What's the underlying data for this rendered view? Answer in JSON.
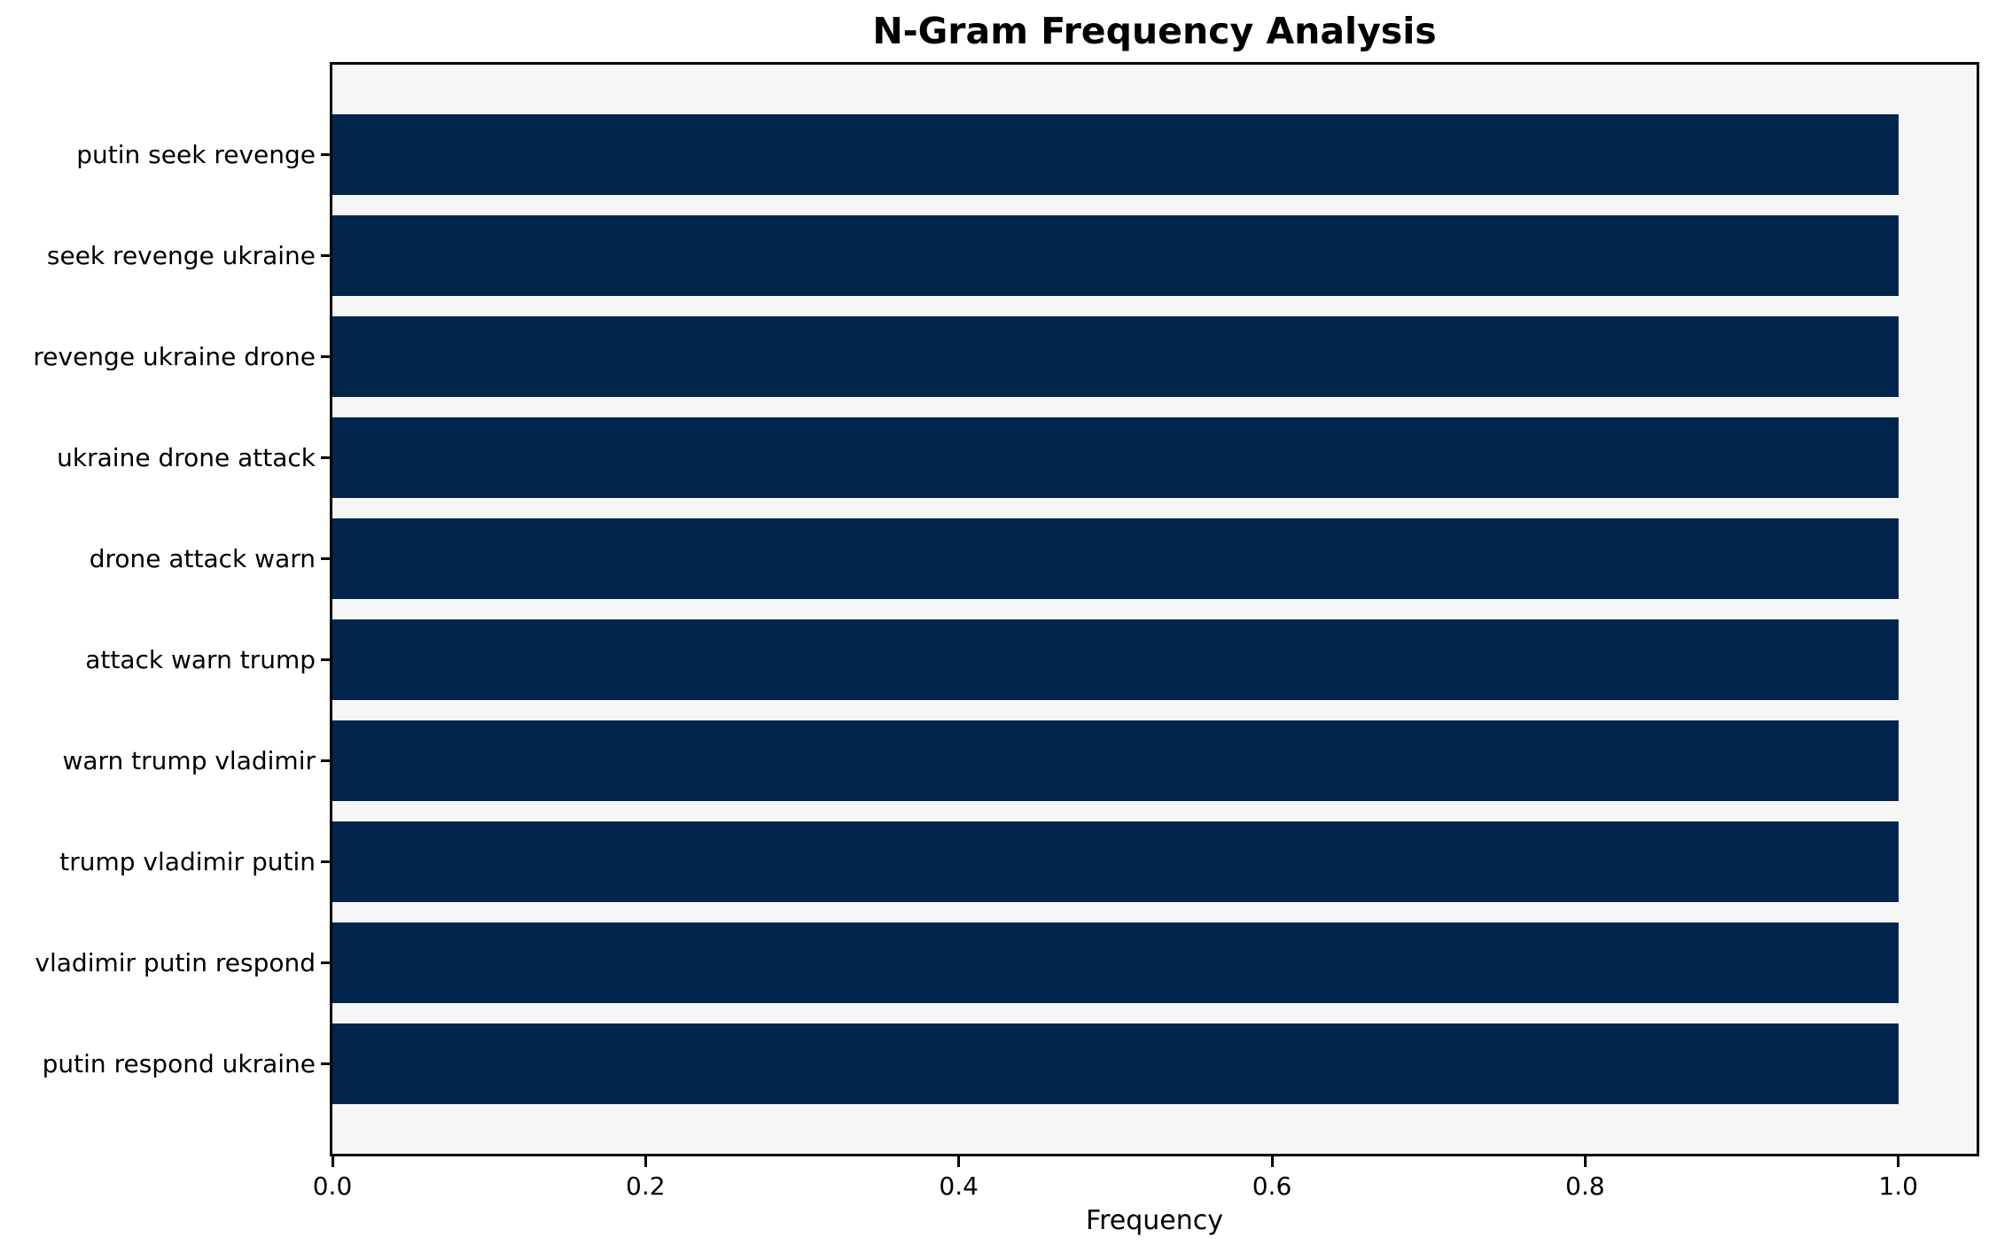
{
  "chart_data": {
    "type": "bar",
    "orientation": "horizontal",
    "title": "N-Gram Frequency Analysis",
    "xlabel": "Frequency",
    "categories": [
      "putin seek revenge",
      "seek revenge ukraine",
      "revenge ukraine drone",
      "ukraine drone attack",
      "drone attack warn",
      "attack warn trump",
      "warn trump vladimir",
      "trump vladimir putin",
      "vladimir putin respond",
      "putin respond ukraine"
    ],
    "values": [
      1.0,
      1.0,
      1.0,
      1.0,
      1.0,
      1.0,
      1.0,
      1.0,
      1.0,
      1.0
    ],
    "xlim": [
      0,
      1.05
    ],
    "xticks": [
      0.0,
      0.2,
      0.4,
      0.6,
      0.8,
      1.0
    ],
    "xtick_labels": [
      "0.0",
      "0.2",
      "0.4",
      "0.6",
      "0.8",
      "1.0"
    ],
    "bar_height_fraction": 0.8,
    "grid": false,
    "colors": {
      "bar": "#02254e",
      "plot_background": "#f6f6f7",
      "page_background": "#ffffff",
      "frame": "#000000",
      "text": "#000000"
    }
  }
}
